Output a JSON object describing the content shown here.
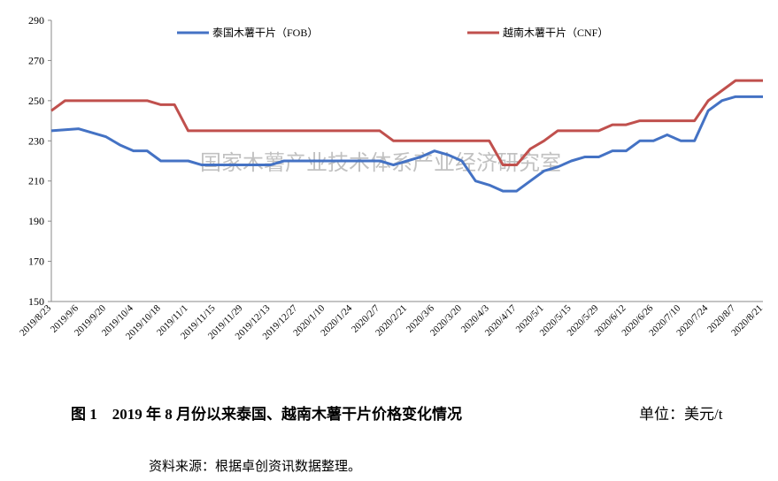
{
  "chart_data": {
    "type": "line",
    "watermark": "国家木薯产业技术体系产业经济研究室",
    "caption": "图 1　2019 年 8 月份以来泰国、越南木薯干片价格变化情况",
    "unit": "单位：美元/t",
    "source": "资料来源：根据卓创资讯数据整理。",
    "categories": [
      "2019/8/23",
      null,
      "2019/9/6",
      null,
      "2019/9/20",
      null,
      "2019/10/4",
      null,
      "2019/10/18",
      null,
      "2019/11/1",
      null,
      "2019/11/15",
      null,
      "2019/11/29",
      null,
      "2019/12/13",
      null,
      "2019/12/27",
      null,
      "2020/1/10",
      null,
      "2020/1/24",
      null,
      "2020/2/7",
      null,
      "2020/2/21",
      null,
      "2020/3/6",
      null,
      "2020/3/20",
      null,
      "2020/4/3",
      null,
      "2020/4/17",
      null,
      "2020/5/1",
      null,
      "2020/5/15",
      null,
      "2020/5/29",
      null,
      "2020/6/12",
      null,
      "2020/6/26",
      null,
      "2020/7/10",
      null,
      "2020/7/24",
      null,
      "2020/8/7",
      null,
      "2020/8/21"
    ],
    "series": [
      {
        "name": "泰国木薯干片（FOB）",
        "color": "#4472c4",
        "values": [
          235,
          235.5,
          236,
          234,
          232,
          228,
          225,
          225,
          220,
          220,
          220,
          218,
          218,
          218,
          218,
          218,
          218,
          220,
          220,
          220,
          220,
          220,
          220,
          220,
          220,
          218,
          220,
          222,
          225,
          223,
          220,
          210,
          208,
          205,
          205,
          210,
          215,
          217,
          220,
          222,
          222,
          225,
          225,
          230,
          230,
          233,
          230,
          230,
          245,
          250,
          252,
          252,
          252
        ]
      },
      {
        "name": "越南木薯干片（CNF）",
        "color": "#c0504d",
        "values": [
          245,
          250,
          250,
          250,
          250,
          250,
          250,
          250,
          248,
          248,
          235,
          235,
          235,
          235,
          235,
          235,
          235,
          235,
          235,
          235,
          235,
          235,
          235,
          235,
          235,
          230,
          230,
          230,
          230,
          230,
          230,
          230,
          230,
          218,
          218,
          226,
          230,
          235,
          235,
          235,
          235,
          238,
          238,
          240,
          240,
          240,
          240,
          240,
          250,
          255,
          260,
          260,
          260
        ]
      }
    ],
    "ylim": [
      150,
      290
    ],
    "yticks": [
      150,
      170,
      190,
      210,
      230,
      250,
      270,
      290
    ],
    "grid": false
  }
}
